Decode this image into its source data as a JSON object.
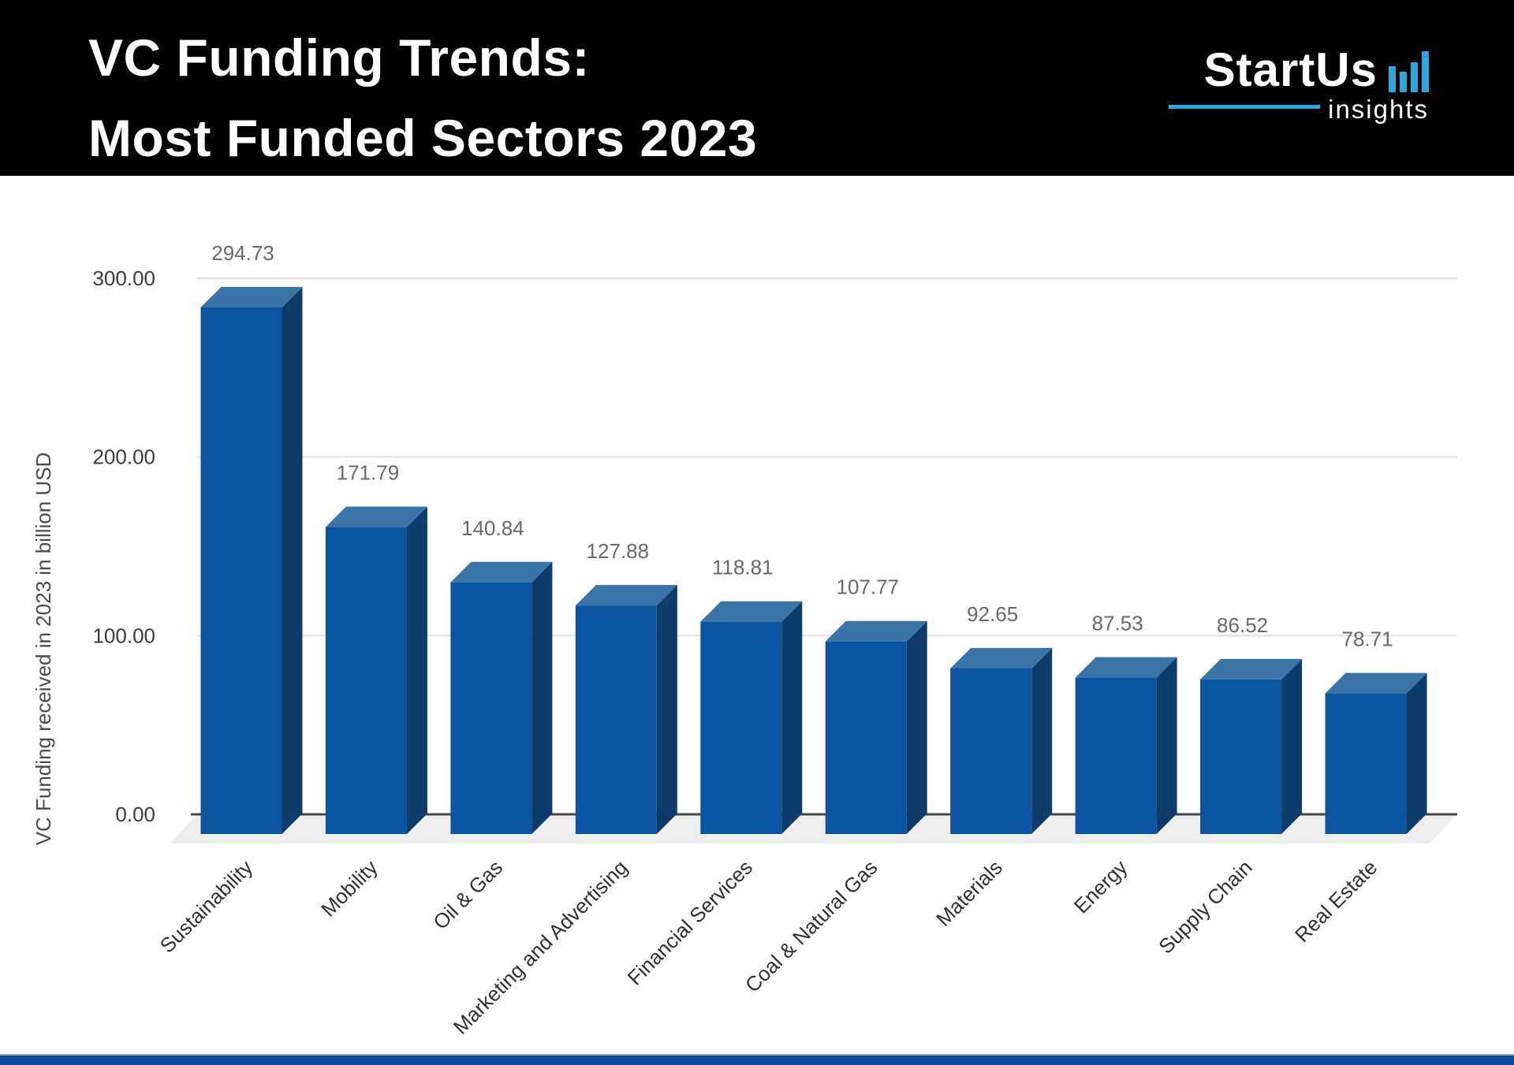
{
  "header": {
    "title_line1": "VC Funding Trends:",
    "title_line2": "Most Funded Sectors 2023",
    "background": "#000000",
    "title_color": "#ffffff"
  },
  "logo": {
    "brand": "StartUs",
    "tagline": "insights",
    "accent_color": "#2aa7df",
    "icon": "bar-chart-icon",
    "icon_bar_heights": [
      33,
      26,
      38,
      52
    ]
  },
  "chart_data": {
    "type": "bar",
    "style": "3d-column",
    "title": "VC Funding Trends: Most Funded Sectors 2023",
    "categories": [
      "Sustainability",
      "Mobility",
      "Oil & Gas",
      "Marketing and Advertising",
      "Financial Services",
      "Coal & Natural Gas",
      "Materials",
      "Energy",
      "Supply Chain",
      "Real Estate"
    ],
    "values": [
      294.73,
      171.79,
      140.84,
      127.88,
      118.81,
      107.77,
      92.65,
      87.53,
      86.52,
      78.71
    ],
    "value_labels": [
      "294.73",
      "171.79",
      "140.84",
      "127.88",
      "118.81",
      "107.77",
      "92.65",
      "87.53",
      "86.52",
      "78.71"
    ],
    "xlabel": "",
    "ylabel": "VC Funding received in 2023 in billion USD",
    "ylim": [
      0,
      300
    ],
    "y_ticks": [
      0,
      100,
      200,
      300
    ],
    "y_tick_labels": [
      "0.00",
      "100.00",
      "200.00",
      "300.00"
    ],
    "grid": true,
    "legend": false,
    "colors": {
      "bar_front": "#0b54a2",
      "bar_top": "#3a74a6",
      "bar_side": "#0e3c6b",
      "gridline": "#e0e0e0",
      "axis_line": "#474747",
      "floor": "#efefef",
      "value_label": "#696969",
      "tick_label": "#3c3c3c",
      "category_label": "#303030"
    }
  },
  "footer": {
    "bar_color": "#0d4a9b",
    "bar_top_edge_color": "#9aa5c8"
  }
}
